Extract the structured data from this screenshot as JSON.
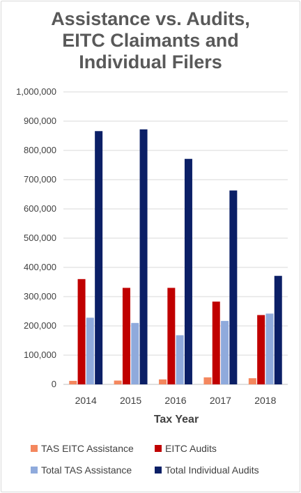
{
  "chart_data": {
    "type": "bar",
    "title_lines": [
      "Assistance vs. Audits,",
      "EITC Claimants and",
      "Individual Filers"
    ],
    "xlabel": "Tax Year",
    "ylabel": "",
    "ylim": [
      0,
      1000000
    ],
    "ytick_step": 100000,
    "categories": [
      "2014",
      "2015",
      "2016",
      "2017",
      "2018"
    ],
    "series": [
      {
        "name": "TAS EITC Assistance",
        "color": "#f4875e",
        "values": [
          12000,
          13000,
          17000,
          24000,
          21000
        ]
      },
      {
        "name": "EITC Audits",
        "color": "#c00000",
        "values": [
          360000,
          330000,
          330000,
          283000,
          237000
        ]
      },
      {
        "name": "Total TAS Assistance",
        "color": "#8faadc",
        "values": [
          228000,
          210000,
          168000,
          217000,
          242000
        ]
      },
      {
        "name": "Total Individual Audits",
        "color": "#0b1f66",
        "values": [
          866000,
          872000,
          771000,
          663000,
          371000
        ]
      }
    ],
    "grid": true,
    "legend_position": "bottom"
  }
}
